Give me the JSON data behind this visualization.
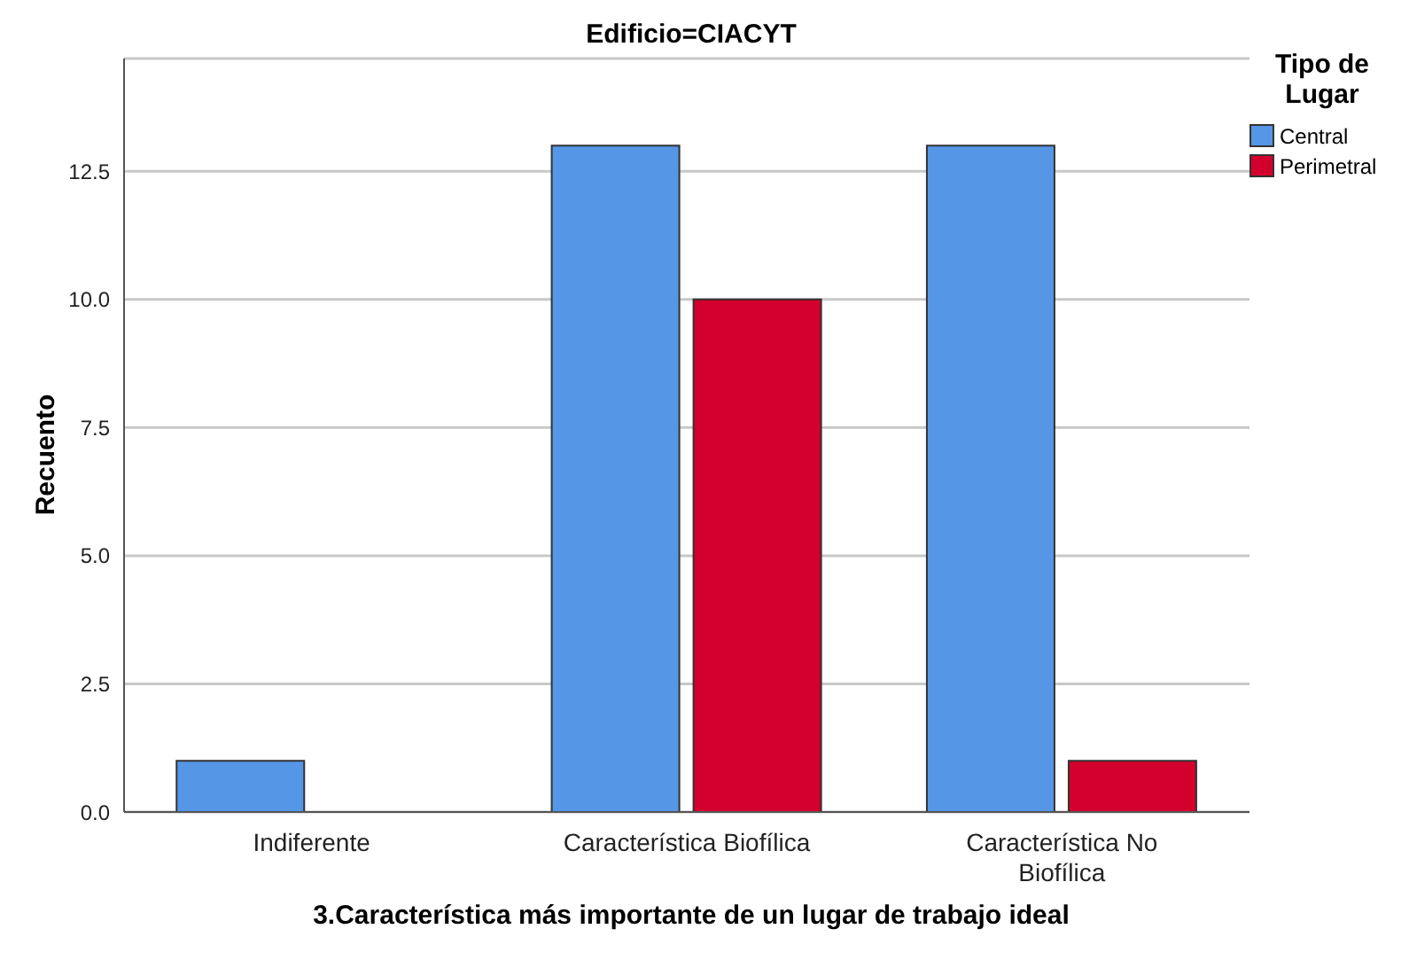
{
  "chart_data": {
    "type": "bar",
    "title": "Edificio=CIACYT",
    "xlabel": "3.Característica más importante de un lugar de trabajo ideal",
    "ylabel": "Recuento",
    "legend_title": "Tipo de Lugar",
    "categories": [
      "Indiferente",
      "Característica Biofílica",
      "Característica No Biofílica"
    ],
    "series": [
      {
        "name": "Central",
        "color": "#5596e6",
        "values": [
          1,
          13,
          13
        ]
      },
      {
        "name": "Perimetral",
        "color": "#d3002e",
        "values": [
          null,
          10,
          1
        ]
      }
    ],
    "ylim": [
      0,
      14.7
    ],
    "yticks": [
      {
        "value": 0,
        "label": "0.0"
      },
      {
        "value": 2.5,
        "label": "2.5"
      },
      {
        "value": 5,
        "label": "5.0"
      },
      {
        "value": 7.5,
        "label": "7.5"
      },
      {
        "value": 10,
        "label": "10.0"
      },
      {
        "value": 12.5,
        "label": "12.5"
      }
    ],
    "grid": "y",
    "legend": "top right"
  }
}
